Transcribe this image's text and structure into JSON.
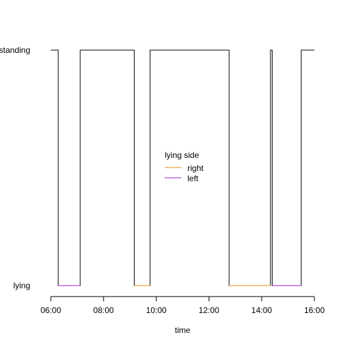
{
  "chart_data": {
    "type": "line",
    "xlabel": "time",
    "ylabel": "",
    "x_axis": {
      "range": [
        "06:00",
        "16:00"
      ],
      "ticks": [
        "06:00",
        "08:00",
        "10:00",
        "12:00",
        "14:00",
        "16:00"
      ]
    },
    "y_axis": {
      "categories": [
        "lying",
        "standing"
      ]
    },
    "grid": false,
    "legend": {
      "title": "lying side",
      "placement": "center",
      "entries": [
        {
          "label": "right",
          "color": "#E8A33D"
        },
        {
          "label": "left",
          "color": "#B24BDB"
        }
      ]
    },
    "series": [
      {
        "name": "posture",
        "color": "#000000",
        "step_points": [
          {
            "time": "06:00",
            "state": "standing"
          },
          {
            "time": "06:17",
            "state": "lying"
          },
          {
            "time": "07:07",
            "state": "standing"
          },
          {
            "time": "09:10",
            "state": "lying"
          },
          {
            "time": "09:46",
            "state": "standing"
          },
          {
            "time": "12:46",
            "state": "lying"
          },
          {
            "time": "14:20",
            "state": "standing"
          },
          {
            "time": "14:24",
            "state": "lying"
          },
          {
            "time": "15:30",
            "state": "standing"
          },
          {
            "time": "16:00",
            "state": "standing"
          }
        ]
      }
    ],
    "lying_bouts": [
      {
        "start": "06:17",
        "end": "07:07",
        "side": "left"
      },
      {
        "start": "09:10",
        "end": "09:46",
        "side": "right"
      },
      {
        "start": "12:46",
        "end": "14:20",
        "side": "right"
      },
      {
        "start": "14:24",
        "end": "15:30",
        "side": "left"
      }
    ]
  }
}
